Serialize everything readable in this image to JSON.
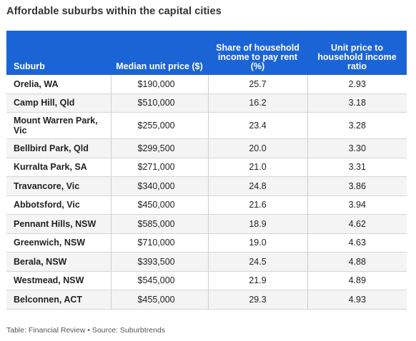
{
  "title": "Affordable suburbs within the capital cities",
  "chart_data": {
    "type": "table",
    "columns": [
      "Suburb",
      "Median unit price ($)",
      "Share of household income to pay rent (%)",
      "Unit price to household income ratio"
    ],
    "rows": [
      [
        "Orelia, WA",
        "$190,000",
        "25.7",
        "2.93"
      ],
      [
        "Camp Hill, Qld",
        "$510,000",
        "16.2",
        "3.18"
      ],
      [
        "Mount Warren Park, Vic",
        "$255,000",
        "23.4",
        "3.28"
      ],
      [
        "Bellbird Park, Qld",
        "$299,500",
        "20.0",
        "3.30"
      ],
      [
        "Kurralta Park, SA",
        "$271,000",
        "21.0",
        "3.31"
      ],
      [
        "Travancore, Vic",
        "$340,000",
        "24.8",
        "3.86"
      ],
      [
        "Abbotsford, Vic",
        "$450,000",
        "21.6",
        "3.94"
      ],
      [
        "Pennant Hills, NSW",
        "$585,000",
        "18.9",
        "4.62"
      ],
      [
        "Greenwich, NSW",
        "$710,000",
        "19.0",
        "4.63"
      ],
      [
        "Berala, NSW",
        "$393,500",
        "24.5",
        "4.88"
      ],
      [
        "Westmead, NSW",
        "$545,000",
        "21.9",
        "4.89"
      ],
      [
        "Belconnen, ACT",
        "$455,000",
        "29.3",
        "4.93"
      ]
    ]
  },
  "footer": "Table: Financial Review • Source: Suburbtrends",
  "colors": {
    "header_bg": "#1b64d6",
    "header_text": "#ffffff",
    "row_alt": "#f4f4f4"
  }
}
